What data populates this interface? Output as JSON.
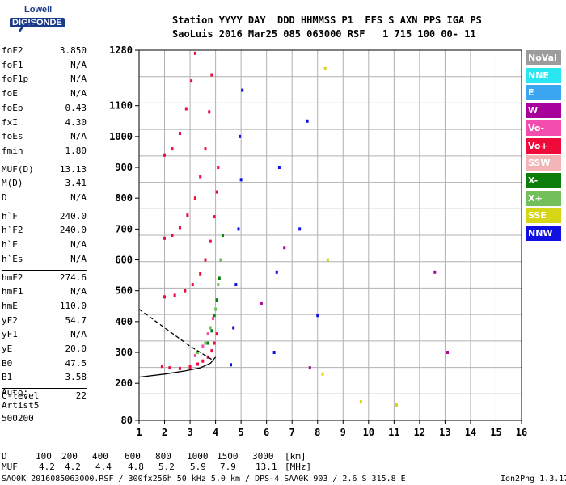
{
  "logo": {
    "top": "Lowell",
    "bottom": "DIGISONDE"
  },
  "header": {
    "line1": "Station YYYY DAY  DDD HHMMSS P1  FFS S AXN PPS IGA PS",
    "line2": "SaoLuis 2016 Mar25 085 063000 RSF   1 715 100 00- 11"
  },
  "params": [
    {
      "name": "foF2",
      "value": "3.850",
      "group": 1
    },
    {
      "name": "foF1",
      "value": "N/A",
      "group": 1
    },
    {
      "name": "foF1p",
      "value": "N/A",
      "group": 1
    },
    {
      "name": "foE",
      "value": "N/A",
      "group": 1
    },
    {
      "name": "foEp",
      "value": "0.43",
      "group": 1
    },
    {
      "name": "fxI",
      "value": "4.30",
      "group": 1
    },
    {
      "name": "foEs",
      "value": "N/A",
      "group": 1
    },
    {
      "name": "fmin",
      "value": "1.80",
      "group": 1
    },
    {
      "name": "MUF(D)",
      "value": "13.13",
      "group": 2
    },
    {
      "name": "M(D)",
      "value": "3.41",
      "group": 2
    },
    {
      "name": "D",
      "value": "N/A",
      "group": 2
    },
    {
      "name": "h`F",
      "value": "240.0",
      "group": 3
    },
    {
      "name": "h`F2",
      "value": "240.0",
      "group": 3
    },
    {
      "name": "h`E",
      "value": "N/A",
      "group": 3
    },
    {
      "name": "h`Es",
      "value": "N/A",
      "group": 3
    },
    {
      "name": "hmF2",
      "value": "274.6",
      "group": 4
    },
    {
      "name": "hmF1",
      "value": "N/A",
      "group": 4
    },
    {
      "name": "hmE",
      "value": "110.0",
      "group": 4
    },
    {
      "name": "yF2",
      "value": "54.7",
      "group": 4
    },
    {
      "name": "yF1",
      "value": "N/A",
      "group": 4
    },
    {
      "name": "yE",
      "value": "20.0",
      "group": 4
    },
    {
      "name": "B0",
      "value": "47.5",
      "group": 4
    },
    {
      "name": "B1",
      "value": "3.58",
      "group": 4
    },
    {
      "name": "C-level",
      "value": "22",
      "group": 5
    }
  ],
  "auto": {
    "label": "Auto:",
    "artist": "Artist5",
    "score": "500200"
  },
  "legend": [
    {
      "label": "NoVal",
      "color": "#9c9c9c"
    },
    {
      "label": "NNE",
      "color": "#29e6f0"
    },
    {
      "label": "E",
      "color": "#3aa6f2"
    },
    {
      "label": "W",
      "color": "#a8009a"
    },
    {
      "label": "Vo-",
      "color": "#f24dae"
    },
    {
      "label": "Vo+",
      "color": "#ee0a3a"
    },
    {
      "label": "SSW",
      "color": "#f2b4b4"
    },
    {
      "label": "X-",
      "color": "#0b7d0b"
    },
    {
      "label": "X+",
      "color": "#73bf5a"
    },
    {
      "label": "SSE",
      "color": "#d6d616"
    },
    {
      "label": "NNW",
      "color": "#1010e0"
    }
  ],
  "muf_table": {
    "d_label": "D",
    "d_values": [
      "100",
      "200",
      "400",
      "600",
      "800",
      "1000",
      "1500",
      "3000"
    ],
    "d_unit": "[km]",
    "muf_label": "MUF",
    "muf_values": [
      "4.2",
      "4.2",
      "4.4",
      "4.8",
      "5.2",
      "5.9",
      "7.9",
      "13.1"
    ],
    "muf_unit": "[MHz]"
  },
  "footer": {
    "left": "SAO0K_2016085063000.RSF / 300fx256h 50 kHz 5.0 km / DPS-4 SAA0K 903 / 2.6 S 315.8 E",
    "right": "Ion2Png 1.3.17"
  },
  "chart_data": {
    "type": "scatter",
    "xlim": [
      1,
      16
    ],
    "ylim": [
      80,
      1280
    ],
    "x_ticks": [
      1,
      2,
      3,
      4,
      5,
      6,
      7,
      8,
      9,
      10,
      11,
      12,
      13,
      14,
      15,
      16
    ],
    "y_ticks": [
      80,
      200,
      300,
      400,
      500,
      600,
      700,
      800,
      900,
      1000,
      1100,
      1280
    ],
    "grid": true,
    "series": [
      {
        "color": "#ee0a3a",
        "values": [
          [
            1.9,
            255
          ],
          [
            2.2,
            250
          ],
          [
            2.6,
            248
          ],
          [
            3.0,
            253
          ],
          [
            3.3,
            262
          ],
          [
            3.5,
            272
          ],
          [
            3.7,
            285
          ],
          [
            3.85,
            305
          ],
          [
            3.95,
            330
          ],
          [
            4.05,
            360
          ]
        ]
      },
      {
        "color": "#ee0a3a",
        "values": [
          [
            2.0,
            480
          ],
          [
            2.4,
            485
          ],
          [
            2.8,
            500
          ],
          [
            3.1,
            520
          ],
          [
            3.4,
            555
          ],
          [
            3.6,
            600
          ],
          [
            3.8,
            660
          ],
          [
            3.95,
            740
          ],
          [
            4.05,
            820
          ],
          [
            4.1,
            900
          ]
        ]
      },
      {
        "color": "#ee0a3a",
        "values": [
          [
            2.0,
            670
          ],
          [
            2.3,
            680
          ],
          [
            2.6,
            705
          ],
          [
            2.9,
            745
          ],
          [
            3.2,
            800
          ],
          [
            3.4,
            870
          ],
          [
            3.6,
            960
          ],
          [
            3.75,
            1080
          ],
          [
            3.85,
            1200
          ]
        ]
      },
      {
        "color": "#ee0a3a",
        "values": [
          [
            2.0,
            940
          ],
          [
            2.3,
            960
          ],
          [
            2.6,
            1010
          ],
          [
            2.85,
            1090
          ],
          [
            3.05,
            1180
          ],
          [
            3.2,
            1270
          ]
        ]
      },
      {
        "color": "#0b7d0b",
        "values": [
          [
            3.7,
            330
          ],
          [
            3.85,
            370
          ],
          [
            3.95,
            420
          ],
          [
            4.05,
            470
          ],
          [
            4.15,
            540
          ],
          [
            4.22,
            600
          ],
          [
            4.28,
            680
          ]
        ]
      },
      {
        "color": "#73bf5a",
        "values": [
          [
            3.3,
            300
          ],
          [
            3.6,
            330
          ],
          [
            3.8,
            380
          ],
          [
            4.0,
            440
          ],
          [
            4.1,
            520
          ],
          [
            4.2,
            600
          ]
        ]
      },
      {
        "color": "#f24dae",
        "values": [
          [
            3.2,
            290
          ],
          [
            3.5,
            320
          ],
          [
            3.7,
            360
          ],
          [
            3.9,
            410
          ]
        ]
      },
      {
        "color": "#1010e0",
        "values": [
          [
            4.6,
            260
          ],
          [
            4.7,
            380
          ],
          [
            4.8,
            520
          ],
          [
            4.9,
            700
          ],
          [
            5.0,
            860
          ],
          [
            4.95,
            1000
          ],
          [
            5.05,
            1150
          ],
          [
            6.3,
            300
          ],
          [
            6.4,
            560
          ],
          [
            6.5,
            900
          ],
          [
            7.3,
            700
          ],
          [
            7.6,
            1050
          ],
          [
            8.0,
            420
          ]
        ]
      },
      {
        "color": "#d6d616",
        "values": [
          [
            8.2,
            230
          ],
          [
            8.4,
            600
          ],
          [
            9.7,
            140
          ],
          [
            11.1,
            130
          ],
          [
            8.3,
            1220
          ]
        ]
      },
      {
        "color": "#a8009a",
        "values": [
          [
            5.8,
            460
          ],
          [
            6.7,
            640
          ],
          [
            7.7,
            250
          ],
          [
            13.1,
            300
          ],
          [
            12.6,
            560
          ]
        ]
      }
    ],
    "fits": [
      {
        "style": "solid",
        "values": [
          [
            1.0,
            220
          ],
          [
            2.0,
            230
          ],
          [
            2.8,
            240
          ],
          [
            3.4,
            250
          ],
          [
            3.8,
            265
          ],
          [
            4.0,
            285
          ]
        ]
      },
      {
        "style": "dashed",
        "values": [
          [
            1.0,
            440
          ],
          [
            1.5,
            410
          ],
          [
            2.0,
            380
          ],
          [
            2.5,
            350
          ],
          [
            3.0,
            320
          ],
          [
            3.5,
            295
          ],
          [
            3.9,
            275
          ]
        ]
      }
    ]
  }
}
